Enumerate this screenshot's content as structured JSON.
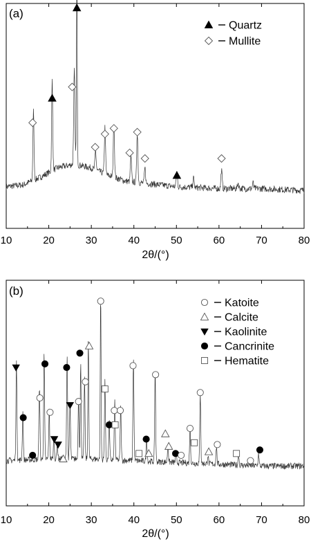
{
  "chart_data": [
    {
      "type": "line",
      "panel_label": "(a)",
      "xlabel": "2θ/(°)",
      "ylabel": "",
      "xlim": [
        10,
        80
      ],
      "x_ticks": [
        "10",
        "20",
        "30",
        "40",
        "50",
        "60",
        "70",
        "80"
      ],
      "grid": false,
      "legend": {
        "placement": "top-right",
        "entries": [
          {
            "name": "Quartz",
            "marker": "filled-triangle"
          },
          {
            "name": "Mullite",
            "marker": "open-diamond"
          }
        ]
      },
      "baseline": [
        [
          10,
          0.1
        ],
        [
          14,
          0.11
        ],
        [
          18,
          0.15
        ],
        [
          22,
          0.2
        ],
        [
          26,
          0.22
        ],
        [
          30,
          0.2
        ],
        [
          34,
          0.16
        ],
        [
          38,
          0.13
        ],
        [
          42,
          0.12
        ],
        [
          50,
          0.1
        ],
        [
          60,
          0.09
        ],
        [
          70,
          0.09
        ],
        [
          80,
          0.08
        ]
      ],
      "series": [
        {
          "peaks": [
            {
              "x": 16.4,
              "h": 0.37,
              "w": 0.18
            },
            {
              "x": 20.8,
              "h": 0.48,
              "w": 0.18
            },
            {
              "x": 26.0,
              "h": 0.5,
              "w": 0.2
            },
            {
              "x": 26.6,
              "h": 1.0,
              "w": 0.14
            },
            {
              "x": 31.0,
              "h": 0.1,
              "w": 0.2
            },
            {
              "x": 33.2,
              "h": 0.25,
              "w": 0.2
            },
            {
              "x": 35.3,
              "h": 0.3,
              "w": 0.2
            },
            {
              "x": 39.3,
              "h": 0.13,
              "w": 0.2
            },
            {
              "x": 40.8,
              "h": 0.27,
              "w": 0.2
            },
            {
              "x": 42.6,
              "h": 0.08,
              "w": 0.2
            },
            {
              "x": 50.1,
              "h": 0.08,
              "w": 0.2
            },
            {
              "x": 54.0,
              "h": 0.05,
              "w": 0.2
            },
            {
              "x": 60.6,
              "h": 0.1,
              "w": 0.2
            },
            {
              "x": 64.5,
              "h": 0.03,
              "w": 0.2
            },
            {
              "x": 68.0,
              "h": 0.03,
              "w": 0.2
            }
          ]
        }
      ],
      "markers": [
        {
          "phase": "Quartz",
          "x": 26.6,
          "y": 1.05
        },
        {
          "phase": "Quartz",
          "x": 20.8,
          "y": 0.57
        },
        {
          "phase": "Quartz",
          "x": 50.1,
          "y": 0.16
        },
        {
          "phase": "Mullite",
          "x": 16.2,
          "y": 0.44
        },
        {
          "phase": "Mullite",
          "x": 25.5,
          "y": 0.63
        },
        {
          "phase": "Mullite",
          "x": 30.9,
          "y": 0.31
        },
        {
          "phase": "Mullite",
          "x": 33.2,
          "y": 0.38
        },
        {
          "phase": "Mullite",
          "x": 35.3,
          "y": 0.41
        },
        {
          "phase": "Mullite",
          "x": 39.0,
          "y": 0.28
        },
        {
          "phase": "Mullite",
          "x": 40.8,
          "y": 0.39
        },
        {
          "phase": "Mullite",
          "x": 42.6,
          "y": 0.25
        },
        {
          "phase": "Mullite",
          "x": 60.6,
          "y": 0.25
        }
      ]
    },
    {
      "type": "line",
      "panel_label": "(b)",
      "xlabel": "2θ/(°)",
      "ylabel": "",
      "xlim": [
        10,
        80
      ],
      "x_ticks": [
        "10",
        "20",
        "30",
        "40",
        "50",
        "60",
        "70",
        "80"
      ],
      "grid": false,
      "legend": {
        "placement": "top-right",
        "entries": [
          {
            "name": "Katoite",
            "marker": "open-circle"
          },
          {
            "name": "Calcite",
            "marker": "open-triangle"
          },
          {
            "name": "Kaolinite",
            "marker": "filled-down-triangle"
          },
          {
            "name": "Cancrinite",
            "marker": "filled-circle"
          },
          {
            "name": "Hematite",
            "marker": "open-square"
          }
        ]
      },
      "baseline": [
        [
          10,
          0.09
        ],
        [
          20,
          0.1
        ],
        [
          30,
          0.1
        ],
        [
          40,
          0.09
        ],
        [
          50,
          0.08
        ],
        [
          60,
          0.07
        ],
        [
          70,
          0.06
        ],
        [
          80,
          0.06
        ]
      ],
      "series": [
        {
          "peaks": [
            {
              "x": 12.4,
              "h": 0.54,
              "w": 0.16
            },
            {
              "x": 13.9,
              "h": 0.27,
              "w": 0.16
            },
            {
              "x": 17.8,
              "h": 0.42,
              "w": 0.16
            },
            {
              "x": 18.9,
              "h": 0.58,
              "w": 0.16
            },
            {
              "x": 20.1,
              "h": 0.27,
              "w": 0.16
            },
            {
              "x": 21.2,
              "h": 0.12,
              "w": 0.16
            },
            {
              "x": 22.0,
              "h": 0.08,
              "w": 0.16
            },
            {
              "x": 24.3,
              "h": 0.58,
              "w": 0.16
            },
            {
              "x": 25.0,
              "h": 0.3,
              "w": 0.16
            },
            {
              "x": 27.0,
              "h": 0.34,
              "w": 0.16
            },
            {
              "x": 27.5,
              "h": 0.55,
              "w": 0.14
            },
            {
              "x": 28.4,
              "h": 0.45,
              "w": 0.16
            },
            {
              "x": 29.3,
              "h": 0.67,
              "w": 0.14
            },
            {
              "x": 32.2,
              "h": 0.92,
              "w": 0.14
            },
            {
              "x": 33.2,
              "h": 0.45,
              "w": 0.16
            },
            {
              "x": 34.2,
              "h": 0.22,
              "w": 0.16
            },
            {
              "x": 35.5,
              "h": 0.33,
              "w": 0.16
            },
            {
              "x": 36.9,
              "h": 0.3,
              "w": 0.16
            },
            {
              "x": 39.9,
              "h": 0.57,
              "w": 0.16
            },
            {
              "x": 43.0,
              "h": 0.13,
              "w": 0.16
            },
            {
              "x": 45.0,
              "h": 0.52,
              "w": 0.16
            },
            {
              "x": 48.0,
              "h": 0.1,
              "w": 0.16
            },
            {
              "x": 49.9,
              "h": 0.05,
              "w": 0.16
            },
            {
              "x": 53.2,
              "h": 0.2,
              "w": 0.16
            },
            {
              "x": 55.6,
              "h": 0.4,
              "w": 0.16
            },
            {
              "x": 57.4,
              "h": 0.05,
              "w": 0.16
            },
            {
              "x": 59.4,
              "h": 0.1,
              "w": 0.16
            },
            {
              "x": 64.6,
              "h": 0.06,
              "w": 0.16
            },
            {
              "x": 69.3,
              "h": 0.07,
              "w": 0.16
            }
          ]
        }
      ],
      "markers": [
        {
          "phase": "Kaolinite",
          "x": 12.3,
          "y": 0.61
        },
        {
          "phase": "Kaolinite",
          "x": 21.3,
          "y": 0.21
        },
        {
          "phase": "Kaolinite",
          "x": 22.2,
          "y": 0.18
        },
        {
          "phase": "Kaolinite",
          "x": 25.0,
          "y": 0.4
        },
        {
          "phase": "Cancrinite",
          "x": 14.0,
          "y": 0.33
        },
        {
          "phase": "Cancrinite",
          "x": 16.2,
          "y": 0.12
        },
        {
          "phase": "Cancrinite",
          "x": 19.1,
          "y": 0.63
        },
        {
          "phase": "Cancrinite",
          "x": 24.2,
          "y": 0.61
        },
        {
          "phase": "Cancrinite",
          "x": 27.3,
          "y": 0.69
        },
        {
          "phase": "Cancrinite",
          "x": 34.2,
          "y": 0.29
        },
        {
          "phase": "Cancrinite",
          "x": 42.9,
          "y": 0.21
        },
        {
          "phase": "Cancrinite",
          "x": 49.8,
          "y": 0.13
        },
        {
          "phase": "Cancrinite",
          "x": 69.6,
          "y": 0.15
        },
        {
          "phase": "Katoite",
          "x": 17.9,
          "y": 0.44
        },
        {
          "phase": "Katoite",
          "x": 20.3,
          "y": 0.36
        },
        {
          "phase": "Katoite",
          "x": 27.0,
          "y": 0.42
        },
        {
          "phase": "Katoite",
          "x": 28.6,
          "y": 0.53
        },
        {
          "phase": "Katoite",
          "x": 32.2,
          "y": 0.98
        },
        {
          "phase": "Katoite",
          "x": 35.4,
          "y": 0.37
        },
        {
          "phase": "Katoite",
          "x": 36.8,
          "y": 0.37
        },
        {
          "phase": "Katoite",
          "x": 39.8,
          "y": 0.62
        },
        {
          "phase": "Katoite",
          "x": 45.1,
          "y": 0.57
        },
        {
          "phase": "Katoite",
          "x": 51.1,
          "y": 0.12
        },
        {
          "phase": "Katoite",
          "x": 53.2,
          "y": 0.27
        },
        {
          "phase": "Katoite",
          "x": 55.6,
          "y": 0.47
        },
        {
          "phase": "Katoite",
          "x": 59.6,
          "y": 0.18
        },
        {
          "phase": "Katoite",
          "x": 67.4,
          "y": 0.09
        },
        {
          "phase": "Calcite",
          "x": 23.4,
          "y": 0.1
        },
        {
          "phase": "Calcite",
          "x": 29.5,
          "y": 0.73
        },
        {
          "phase": "Calcite",
          "x": 43.5,
          "y": 0.13
        },
        {
          "phase": "Calcite",
          "x": 47.4,
          "y": 0.24
        },
        {
          "phase": "Calcite",
          "x": 48.2,
          "y": 0.17
        },
        {
          "phase": "Calcite",
          "x": 57.6,
          "y": 0.14
        },
        {
          "phase": "Hematite",
          "x": 33.2,
          "y": 0.49
        },
        {
          "phase": "Hematite",
          "x": 35.6,
          "y": 0.29
        },
        {
          "phase": "Hematite",
          "x": 41.2,
          "y": 0.13
        },
        {
          "phase": "Hematite",
          "x": 54.2,
          "y": 0.19
        },
        {
          "phase": "Hematite",
          "x": 64.1,
          "y": 0.13
        }
      ]
    }
  ]
}
